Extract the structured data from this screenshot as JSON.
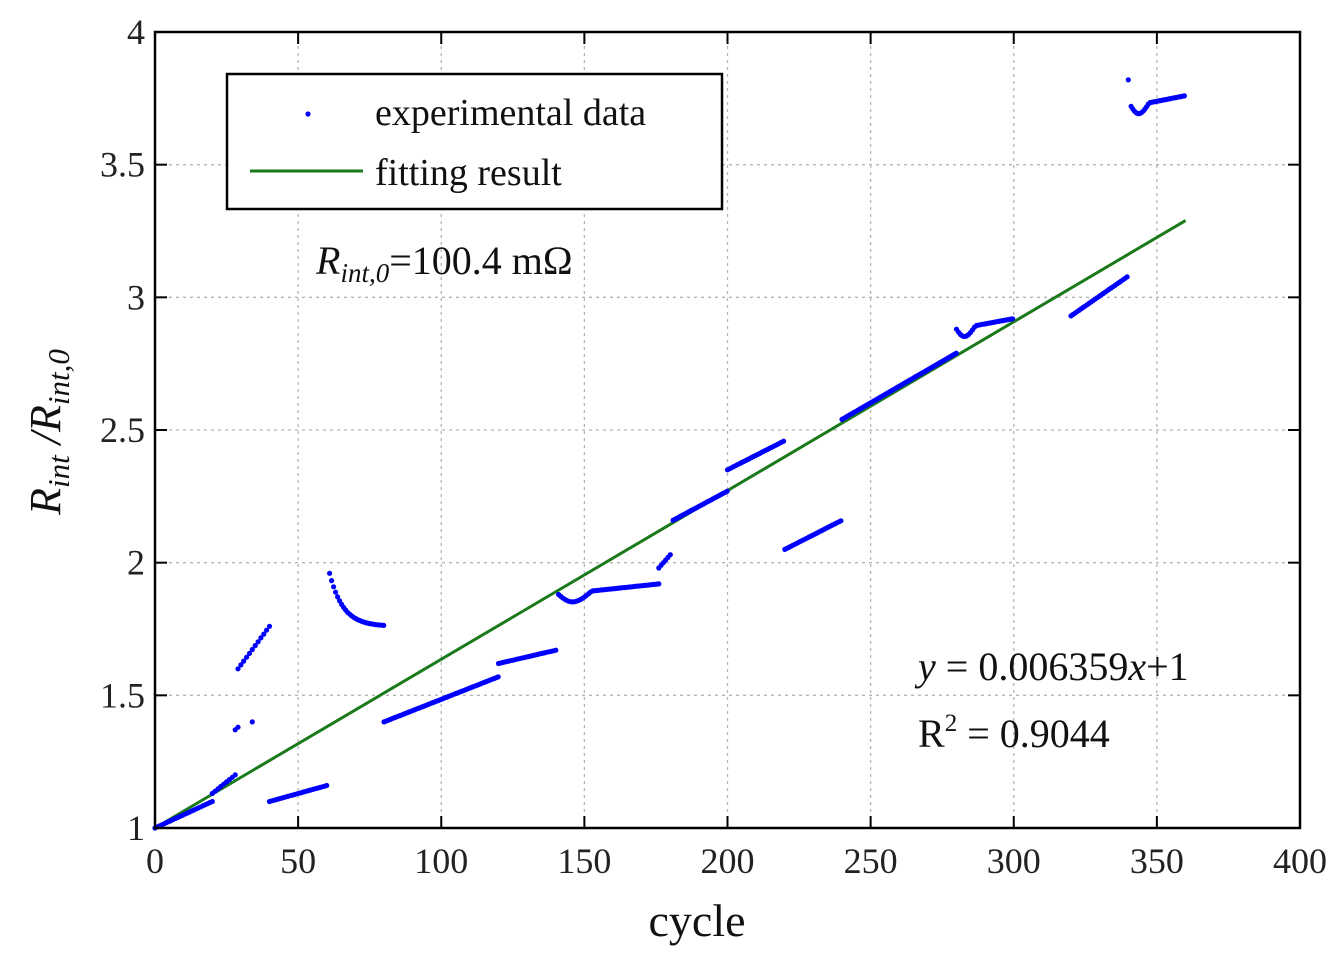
{
  "chart_data": {
    "type": "scatter",
    "title": "",
    "xlabel": "cycle",
    "ylabel": "R_int / R_int,0",
    "ylabel_parts": {
      "num_base": "R",
      "num_sub": "int",
      "sep": " /",
      "den_base": "R",
      "den_sub": "int,0"
    },
    "xlim": [
      0,
      400
    ],
    "ylim": [
      1,
      4
    ],
    "xticks": [
      0,
      50,
      100,
      150,
      200,
      250,
      300,
      350,
      400
    ],
    "yticks": [
      1,
      1.5,
      2,
      2.5,
      3,
      3.5,
      4
    ],
    "xtick_labels": [
      "0",
      "50",
      "100",
      "150",
      "200",
      "250",
      "300",
      "350",
      "400"
    ],
    "ytick_labels": [
      "1",
      "1.5",
      "2",
      "2.5",
      "3",
      "3.5",
      "4"
    ],
    "grid": true,
    "legend": {
      "position": "top-left",
      "entries": [
        {
          "label": "experimental data",
          "marker": "dot",
          "color": "#0000ff"
        },
        {
          "label": "fitting result",
          "marker": "line",
          "color": "#1a7a1a"
        }
      ]
    },
    "annotations": {
      "r0": {
        "base": "R",
        "sub": "int,0",
        "value": "=100.4 mΩ"
      },
      "equation": {
        "var": "y",
        "text1": " = 0.006359",
        "xvar": "x",
        "text2": "+1"
      },
      "r2": {
        "base": "R",
        "sup": "2",
        "text": " = 0.9044"
      }
    },
    "fit": {
      "slope": 0.006359,
      "intercept": 1,
      "x_range": [
        0,
        360
      ]
    },
    "segments": [
      {
        "x_range": [
          0,
          20
        ],
        "y_range": [
          1.0,
          1.1
        ],
        "shape": "linear",
        "step": 0.8
      },
      {
        "x_range": [
          20,
          28
        ],
        "y_range": [
          1.13,
          1.2
        ],
        "shape": "linear",
        "step": 1
      },
      {
        "points": [
          [
            28,
            1.37
          ],
          [
            29,
            1.38
          ],
          [
            34,
            1.4
          ]
        ]
      },
      {
        "x_range": [
          29,
          40
        ],
        "y_range": [
          1.6,
          1.76
        ],
        "shape": "linear",
        "step": 1
      },
      {
        "x_range": [
          40,
          60
        ],
        "y_range": [
          1.1,
          1.16
        ],
        "shape": "linear",
        "step": 0.8
      },
      {
        "x_range": [
          61,
          80
        ],
        "y_range": [
          1.96,
          1.76
        ],
        "shape": "decay",
        "step": 0.7
      },
      {
        "x_range": [
          80,
          120
        ],
        "y_range": [
          1.4,
          1.57
        ],
        "shape": "linear",
        "step": 0.7
      },
      {
        "x_range": [
          120,
          140
        ],
        "y_range": [
          1.62,
          1.67
        ],
        "shape": "linear",
        "step": 0.8
      },
      {
        "x_range": [
          141,
          176
        ],
        "y_range": [
          1.88,
          1.92
        ],
        "shape": "dip",
        "step": 0.7
      },
      {
        "x_range": [
          176,
          180
        ],
        "y_range": [
          1.98,
          2.03
        ],
        "shape": "linear",
        "step": 0.8
      },
      {
        "x_range": [
          181,
          200
        ],
        "y_range": [
          2.16,
          2.27
        ],
        "shape": "linear",
        "step": 0.7
      },
      {
        "x_range": [
          200,
          220
        ],
        "y_range": [
          2.35,
          2.46
        ],
        "shape": "linear",
        "step": 0.7
      },
      {
        "x_range": [
          220,
          240
        ],
        "y_range": [
          2.05,
          2.16
        ],
        "shape": "linear",
        "step": 0.7
      },
      {
        "x_range": [
          240,
          280
        ],
        "y_range": [
          2.54,
          2.79
        ],
        "shape": "linear",
        "step": 0.7
      },
      {
        "x_range": [
          280,
          300
        ],
        "y_range": [
          2.88,
          2.92
        ],
        "shape": "dip",
        "step": 0.7
      },
      {
        "x_range": [
          320,
          340
        ],
        "y_range": [
          2.93,
          3.08
        ],
        "shape": "linear",
        "step": 0.7
      },
      {
        "points": [
          [
            340,
            3.82
          ]
        ]
      },
      {
        "x_range": [
          341,
          360
        ],
        "y_range": [
          3.72,
          3.76
        ],
        "shape": "dip",
        "step": 0.6
      }
    ]
  }
}
